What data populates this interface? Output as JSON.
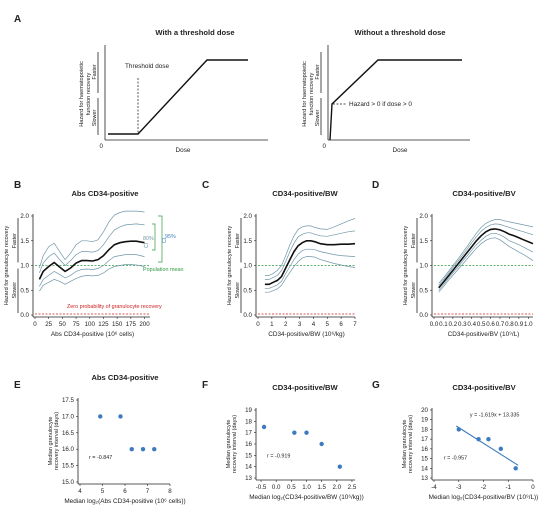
{
  "panels": {
    "A": {
      "label": "A",
      "left_title": "With a threshold dose",
      "right_title": "Without a threshold dose",
      "ylabel_line1": "Hazard for haematopoietic",
      "ylabel_line2": "function recovery",
      "faster": "Faster",
      "slower": "Slower",
      "xlabel": "Dose",
      "origin": "0",
      "threshold_label": "Threshold dose",
      "hazard_label": "Hazard > 0 if dose > 0"
    },
    "B": {
      "label": "B"
    },
    "C": {
      "label": "C"
    },
    "D": {
      "label": "D"
    },
    "E": {
      "label": "E"
    },
    "F": {
      "label": "F"
    },
    "G": {
      "label": "G"
    }
  },
  "annotations": {
    "ci95": "95%",
    "ci95b": "CI",
    "ci80": "80%",
    "ci80b": "CI",
    "pop_mean": "Population mean",
    "zero_prob": "Zero probability of granulocyte recovery",
    "faster": "Faster",
    "slower": "Slower"
  },
  "colors": {
    "mean": "#111111",
    "ci": "#6f96a8",
    "pop_mean": "#2e9a3e",
    "zero": "#cc2222",
    "dot": "#3d7bbf",
    "fit": "#3d7bbf"
  },
  "chart_data": [
    {
      "id": "B",
      "type": "line",
      "title": "Abs CD34-positive",
      "ylabel": "Hazard for granulocyte recovery",
      "xlabel": "Abs CD34-positive (10⁶ cells)",
      "xlim": [
        0,
        210
      ],
      "ylim": [
        0,
        2.0
      ],
      "xticks": [
        0,
        25,
        50,
        75,
        100,
        125,
        150,
        175,
        200
      ],
      "yticks": [
        0,
        0.5,
        1.0,
        1.5,
        2.0
      ],
      "ref_lines": [
        1.0,
        0.0
      ],
      "series": [
        {
          "x": [
            8,
            15,
            25,
            35,
            45,
            55,
            65,
            75,
            85,
            95,
            105,
            115,
            125,
            135,
            145,
            155,
            165,
            175,
            185,
            200
          ],
          "values": [
            0.72,
            0.88,
            0.98,
            1.06,
            0.97,
            0.88,
            0.95,
            1.05,
            1.1,
            1.1,
            1.09,
            1.12,
            1.2,
            1.32,
            1.42,
            1.46,
            1.48,
            1.49,
            1.49,
            1.46
          ]
        },
        {
          "x": [
            8,
            15,
            25,
            35,
            45,
            55,
            65,
            75,
            85,
            95,
            105,
            115,
            125,
            135,
            145,
            155,
            165,
            175,
            185,
            200
          ],
          "values": [
            0.85,
            1.05,
            1.18,
            1.25,
            1.12,
            1.0,
            1.1,
            1.22,
            1.28,
            1.28,
            1.27,
            1.3,
            1.42,
            1.58,
            1.72,
            1.78,
            1.82,
            1.83,
            1.84,
            1.82
          ]
        },
        {
          "x": [
            8,
            15,
            25,
            35,
            45,
            55,
            65,
            75,
            85,
            95,
            105,
            115,
            125,
            135,
            145,
            155,
            165,
            175,
            185,
            200
          ],
          "values": [
            0.58,
            0.72,
            0.8,
            0.88,
            0.82,
            0.75,
            0.8,
            0.88,
            0.92,
            0.93,
            0.92,
            0.94,
            1.0,
            1.1,
            1.18,
            1.2,
            1.22,
            1.22,
            1.22,
            1.18
          ]
        },
        {
          "x": [
            8,
            15,
            25,
            35,
            45,
            55,
            65,
            75,
            85,
            95,
            105,
            115,
            125,
            135,
            145,
            155,
            165,
            175,
            185,
            200
          ],
          "values": [
            0.95,
            1.2,
            1.38,
            1.45,
            1.28,
            1.12,
            1.25,
            1.42,
            1.5,
            1.5,
            1.48,
            1.52,
            1.68,
            1.88,
            2.02,
            2.07,
            2.1,
            2.1,
            2.1,
            2.08
          ]
        },
        {
          "x": [
            8,
            15,
            25,
            35,
            45,
            55,
            65,
            75,
            85,
            95,
            105,
            115,
            125,
            135,
            145,
            155,
            165,
            175,
            185,
            200
          ],
          "values": [
            0.48,
            0.6,
            0.66,
            0.72,
            0.68,
            0.62,
            0.68,
            0.74,
            0.78,
            0.8,
            0.79,
            0.8,
            0.85,
            0.93,
            0.98,
            1.0,
            1.02,
            1.02,
            1.01,
            0.98
          ]
        }
      ]
    },
    {
      "id": "C",
      "type": "line",
      "title": "CD34-positive/BW",
      "ylabel": "Hazard for granulocyte recovery",
      "xlabel": "CD34-positive/BW (10⁶/kg)",
      "xlim": [
        0,
        7
      ],
      "ylim": [
        0,
        2.0
      ],
      "xticks": [
        0,
        1,
        2,
        3,
        4,
        5,
        6,
        7
      ],
      "yticks": [
        0,
        0.5,
        1.0,
        1.5,
        2.0
      ],
      "ref_lines": [
        1.0,
        0.0
      ],
      "series": [
        {
          "x": [
            0.5,
            0.8,
            1.1,
            1.4,
            1.7,
            2.0,
            2.3,
            2.6,
            2.9,
            3.2,
            3.5,
            3.8,
            4.1,
            4.5,
            5.0,
            5.5,
            6.0,
            6.5,
            7.0
          ],
          "values": [
            0.62,
            0.62,
            0.66,
            0.7,
            0.78,
            0.95,
            1.12,
            1.28,
            1.4,
            1.46,
            1.5,
            1.5,
            1.48,
            1.44,
            1.42,
            1.42,
            1.43,
            1.43,
            1.44
          ]
        },
        {
          "x": [
            0.5,
            0.8,
            1.1,
            1.4,
            1.7,
            2.0,
            2.3,
            2.6,
            2.9,
            3.2,
            3.5,
            3.8,
            4.1,
            4.5,
            5.0,
            5.5,
            6.0,
            6.5,
            7.0
          ],
          "values": [
            0.72,
            0.72,
            0.76,
            0.8,
            0.9,
            1.08,
            1.28,
            1.45,
            1.58,
            1.63,
            1.66,
            1.66,
            1.63,
            1.6,
            1.59,
            1.62,
            1.65,
            1.68,
            1.7
          ]
        },
        {
          "x": [
            0.5,
            0.8,
            1.1,
            1.4,
            1.7,
            2.0,
            2.3,
            2.6,
            2.9,
            3.2,
            3.5,
            3.8,
            4.1,
            4.5,
            5.0,
            5.5,
            6.0,
            6.5,
            7.0
          ],
          "values": [
            0.54,
            0.54,
            0.57,
            0.61,
            0.68,
            0.84,
            0.98,
            1.12,
            1.23,
            1.3,
            1.33,
            1.33,
            1.32,
            1.28,
            1.25,
            1.22,
            1.2,
            1.19,
            1.18
          ]
        },
        {
          "x": [
            0.5,
            0.8,
            1.1,
            1.4,
            1.7,
            2.0,
            2.3,
            2.6,
            2.9,
            3.2,
            3.5,
            3.8,
            4.1,
            4.5,
            5.0,
            5.5,
            6.0,
            6.5,
            7.0
          ],
          "values": [
            0.8,
            0.8,
            0.84,
            0.9,
            1.0,
            1.2,
            1.42,
            1.6,
            1.73,
            1.78,
            1.8,
            1.8,
            1.77,
            1.74,
            1.73,
            1.78,
            1.84,
            1.9,
            1.95
          ]
        },
        {
          "x": [
            0.5,
            0.8,
            1.1,
            1.4,
            1.7,
            2.0,
            2.3,
            2.6,
            2.9,
            3.2,
            3.5,
            3.8,
            4.1,
            4.5,
            5.0,
            5.5,
            6.0,
            6.5,
            7.0
          ],
          "values": [
            0.46,
            0.46,
            0.49,
            0.53,
            0.6,
            0.74,
            0.86,
            0.98,
            1.08,
            1.15,
            1.18,
            1.18,
            1.17,
            1.12,
            1.08,
            1.04,
            1.01,
            0.98,
            0.96
          ]
        }
      ]
    },
    {
      "id": "D",
      "type": "line",
      "title": "CD34-positive/BV",
      "ylabel": "Hazard for granulocyte recovery",
      "xlabel": "CD34-positive/BV (10⁹/L)",
      "xlim": [
        0,
        1.05
      ],
      "ylim": [
        0,
        2.0
      ],
      "xticks": [
        0,
        0.1,
        0.2,
        0.3,
        0.4,
        0.5,
        0.6,
        0.7,
        0.8,
        0.9,
        1.0
      ],
      "yticks": [
        0,
        0.5,
        1.0,
        1.5,
        2.0
      ],
      "ref_lines": [
        1.0,
        0.0
      ],
      "series": [
        {
          "x": [
            0.05,
            0.1,
            0.15,
            0.2,
            0.25,
            0.3,
            0.35,
            0.4,
            0.45,
            0.5,
            0.55,
            0.6,
            0.65,
            0.7,
            0.75,
            0.8,
            0.85,
            0.9,
            0.95,
            1.0,
            1.05
          ],
          "values": [
            0.55,
            0.66,
            0.78,
            0.9,
            1.02,
            1.14,
            1.26,
            1.38,
            1.5,
            1.6,
            1.68,
            1.73,
            1.74,
            1.72,
            1.68,
            1.63,
            1.6,
            1.56,
            1.52,
            1.48,
            1.44
          ]
        },
        {
          "x": [
            0.05,
            0.1,
            0.15,
            0.2,
            0.25,
            0.3,
            0.35,
            0.4,
            0.45,
            0.5,
            0.55,
            0.6,
            0.65,
            0.7,
            0.75,
            0.8,
            0.85,
            0.9,
            0.95,
            1.0,
            1.05
          ],
          "values": [
            0.6,
            0.71,
            0.83,
            0.96,
            1.08,
            1.2,
            1.33,
            1.46,
            1.58,
            1.69,
            1.77,
            1.82,
            1.84,
            1.83,
            1.8,
            1.77,
            1.74,
            1.71,
            1.68,
            1.65,
            1.62
          ]
        },
        {
          "x": [
            0.05,
            0.1,
            0.15,
            0.2,
            0.25,
            0.3,
            0.35,
            0.4,
            0.45,
            0.5,
            0.55,
            0.6,
            0.65,
            0.7,
            0.75,
            0.8,
            0.85,
            0.9,
            0.95,
            1.0,
            1.05
          ],
          "values": [
            0.5,
            0.61,
            0.73,
            0.85,
            0.96,
            1.08,
            1.19,
            1.31,
            1.42,
            1.51,
            1.59,
            1.64,
            1.65,
            1.62,
            1.57,
            1.5,
            1.46,
            1.42,
            1.37,
            1.32,
            1.27
          ]
        },
        {
          "x": [
            0.05,
            0.1,
            0.15,
            0.2,
            0.25,
            0.3,
            0.35,
            0.4,
            0.45,
            0.5,
            0.55,
            0.6,
            0.65,
            0.7,
            0.75,
            0.8,
            0.85,
            0.9,
            0.95,
            1.0,
            1.05
          ],
          "values": [
            0.64,
            0.75,
            0.87,
            1.0,
            1.12,
            1.25,
            1.38,
            1.52,
            1.65,
            1.77,
            1.85,
            1.9,
            1.93,
            1.93,
            1.9,
            1.88,
            1.86,
            1.84,
            1.82,
            1.8,
            1.78
          ]
        },
        {
          "x": [
            0.05,
            0.1,
            0.15,
            0.2,
            0.25,
            0.3,
            0.35,
            0.4,
            0.45,
            0.5,
            0.55,
            0.6,
            0.65,
            0.7,
            0.75,
            0.8,
            0.85,
            0.9,
            0.95,
            1.0,
            1.05
          ],
          "values": [
            0.46,
            0.57,
            0.69,
            0.8,
            0.91,
            1.02,
            1.13,
            1.24,
            1.35,
            1.44,
            1.51,
            1.55,
            1.56,
            1.52,
            1.45,
            1.38,
            1.33,
            1.27,
            1.22,
            1.16,
            1.1
          ]
        }
      ]
    },
    {
      "id": "E",
      "type": "scatter",
      "title": "Abs CD34-positive",
      "ylabel": "Median granulocyte recovery interval (days)",
      "xlabel": "Median log₂(Abs CD34-positive (10⁶ cells))",
      "xlim": [
        4,
        8
      ],
      "ylim": [
        15.0,
        17.5
      ],
      "xticks": [
        4,
        5,
        6,
        7,
        8
      ],
      "yticks": [
        15.0,
        15.5,
        16.0,
        16.5,
        17.0,
        17.5
      ],
      "x": [
        4.9,
        5.8,
        6.3,
        6.8,
        7.3
      ],
      "y": [
        17.0,
        17.0,
        16.0,
        16.0,
        16.0
      ],
      "annotation": "r = -0.847"
    },
    {
      "id": "F",
      "type": "scatter",
      "title": "CD34-positive/BW",
      "ylabel": "Median granulocyte recovery interval (days)",
      "xlabel": "Median log₂(CD34-positive/BW (10⁶/kg))",
      "xlim": [
        -0.6,
        2.6
      ],
      "ylim": [
        13,
        19
      ],
      "xticks": [
        -0.5,
        0.0,
        0.5,
        1.0,
        1.5,
        2.0,
        2.5
      ],
      "yticks": [
        13,
        14,
        15,
        16,
        17,
        18,
        19
      ],
      "x": [
        -0.4,
        0.6,
        1.0,
        1.5,
        2.1
      ],
      "y": [
        17.5,
        17.0,
        17.0,
        16.0,
        14.0
      ],
      "annotation": "r = -0.919"
    },
    {
      "id": "G",
      "type": "scatter",
      "title": "CD34-positive/BV",
      "ylabel": "Median granulocyte recovery interval (days)",
      "xlabel": "Median log₂(CD34-positive/BV (10⁹/L))",
      "xlim": [
        -4,
        0
      ],
      "ylim": [
        13,
        20
      ],
      "xticks": [
        -4,
        -3,
        -2,
        -1,
        0
      ],
      "yticks": [
        13,
        14,
        15,
        16,
        17,
        18,
        19,
        20
      ],
      "x": [
        -3.0,
        -2.2,
        -1.8,
        -1.3,
        -0.7
      ],
      "y": [
        18.0,
        17.0,
        17.0,
        16.0,
        14.0
      ],
      "fit": {
        "slope": -1.619,
        "intercept": 13.335
      },
      "equation": "y = -1.619x + 13.335",
      "annotation": "r = -0.957"
    }
  ]
}
